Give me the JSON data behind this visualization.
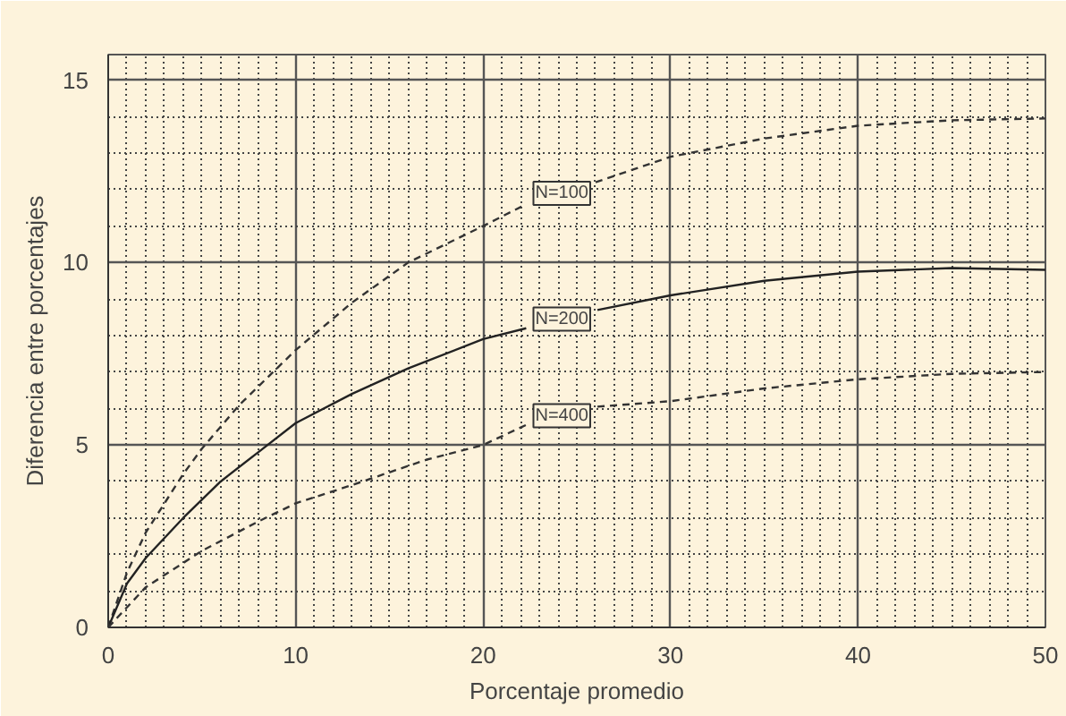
{
  "chart_data": {
    "type": "line",
    "xlabel": "Porcentaje promedio",
    "ylabel": "Diferencia entre porcentajes",
    "xlim": [
      0,
      50
    ],
    "ylim": [
      0,
      15.7
    ],
    "xticks": [
      0,
      10,
      20,
      30,
      40,
      50
    ],
    "yticks": [
      0,
      5,
      10,
      15
    ],
    "grid": true,
    "series": [
      {
        "name": "N=100",
        "color": "#333333",
        "line_style": "dashed",
        "x": [
          0,
          1,
          2,
          3,
          4,
          5,
          7,
          10,
          13,
          16,
          20,
          22.3,
          24.2,
          26,
          30,
          35,
          40,
          45,
          50
        ],
        "values": [
          0,
          1.5,
          2.6,
          3.4,
          4.2,
          4.9,
          6.1,
          7.6,
          8.9,
          10.0,
          11.0,
          11.6,
          null,
          12.2,
          12.9,
          13.4,
          13.75,
          13.9,
          13.95
        ]
      },
      {
        "name": "N=200",
        "color": "#222222",
        "line_style": "solid",
        "x": [
          0,
          1,
          2,
          4,
          6,
          8,
          10,
          13,
          16,
          20,
          22.3,
          24.2,
          26.1,
          30,
          35,
          40,
          45,
          50
        ],
        "values": [
          0,
          1.2,
          1.9,
          3.0,
          4.0,
          4.8,
          5.6,
          6.4,
          7.1,
          7.9,
          8.2,
          null,
          8.7,
          9.1,
          9.5,
          9.75,
          9.85,
          9.8
        ]
      },
      {
        "name": "N=400",
        "color": "#333333",
        "line_style": "dashed",
        "x": [
          0,
          2,
          5,
          8,
          10,
          13,
          17,
          20,
          22.3,
          24.2,
          26.1,
          30,
          35,
          40,
          45,
          50
        ],
        "values": [
          0,
          1.1,
          2.1,
          2.9,
          3.4,
          3.9,
          4.6,
          5.0,
          5.55,
          null,
          6.05,
          6.2,
          6.55,
          6.8,
          6.95,
          7.0
        ]
      }
    ]
  }
}
